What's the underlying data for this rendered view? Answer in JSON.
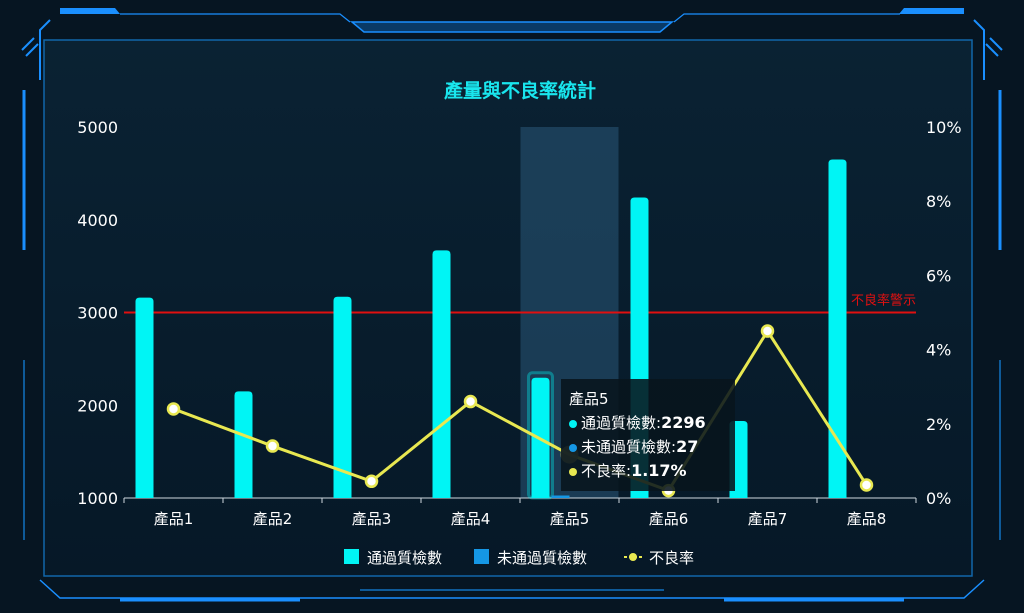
{
  "colors": {
    "pass": "#00f5f5",
    "fail": "#1597e5",
    "rate": "#e8e851",
    "warn": "#e01010",
    "frame": "#1a8fff"
  },
  "chart_data": {
    "type": "bar",
    "title": "產量與不良率統計",
    "categories": [
      "產品1",
      "產品2",
      "產品3",
      "產品4",
      "產品5",
      "產品6",
      "產品7",
      "產品8"
    ],
    "series": [
      {
        "name": "通過質檢數",
        "type": "bar",
        "axis": "left",
        "values": [
          3160,
          2150,
          3170,
          3670,
          2296,
          4240,
          1830,
          4650
        ]
      },
      {
        "name": "未通過質檢數",
        "type": "bar",
        "axis": "left",
        "values": [
          0,
          0,
          0,
          0,
          27,
          0,
          0,
          0
        ]
      },
      {
        "name": "不良率",
        "type": "line",
        "axis": "right",
        "values": [
          2.4,
          1.4,
          0.45,
          2.6,
          1.17,
          0.2,
          4.5,
          0.35
        ]
      }
    ],
    "y_left": {
      "ticks": [
        "1000",
        "2000",
        "3000",
        "4000",
        "5000"
      ],
      "range": [
        1000,
        5000
      ]
    },
    "y_right": {
      "ticks": [
        "0%",
        "2%",
        "4%",
        "6%",
        "8%",
        "10%"
      ],
      "range": [
        0,
        10
      ]
    },
    "warning_line": {
      "value": 3000,
      "label": "不良率警示"
    },
    "highlighted_category": 4,
    "legend_position": "bottom"
  },
  "tooltip": {
    "title": "產品5",
    "rows": [
      {
        "label": "通過質檢數:",
        "value": "2296"
      },
      {
        "label": "未通過質檢數:",
        "value": "27"
      },
      {
        "label": "不良率:",
        "value": "1.17%"
      }
    ]
  }
}
